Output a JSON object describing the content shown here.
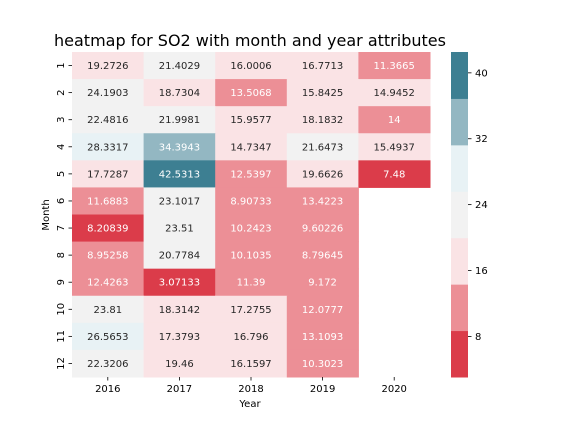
{
  "chart_data": {
    "type": "heatmap",
    "title": "heatmap for SO2 with month and year attributes",
    "xlabel": "Year",
    "ylabel": "Month",
    "x_categories": [
      "2016",
      "2017",
      "2018",
      "2019",
      "2020"
    ],
    "y_categories": [
      "1",
      "2",
      "3",
      "4",
      "5",
      "6",
      "7",
      "8",
      "9",
      "10",
      "11",
      "12"
    ],
    "values": [
      [
        19.2726,
        21.4029,
        16.0006,
        16.7713,
        11.3665
      ],
      [
        24.1903,
        18.7304,
        13.5068,
        15.8425,
        14.9452
      ],
      [
        22.4816,
        21.9981,
        15.9577,
        18.1832,
        14
      ],
      [
        28.3317,
        34.3943,
        14.7347,
        21.6473,
        15.4937
      ],
      [
        17.7287,
        42.5313,
        12.5397,
        19.6626,
        7.48
      ],
      [
        11.6883,
        23.1017,
        8.90733,
        13.4223,
        null
      ],
      [
        8.20839,
        23.51,
        10.2423,
        9.60226,
        null
      ],
      [
        8.95258,
        20.7784,
        10.1035,
        8.79645,
        null
      ],
      [
        12.4263,
        3.07133,
        11.39,
        9.172,
        null
      ],
      [
        23.81,
        18.3142,
        17.2755,
        12.0777,
        null
      ],
      [
        26.5653,
        17.3793,
        16.796,
        13.1093,
        null
      ],
      [
        22.3206,
        19.46,
        16.1597,
        10.3023,
        null
      ]
    ],
    "colorbar": {
      "range": [
        3.07133,
        42.5313
      ],
      "ticks": [
        8,
        16,
        24,
        32,
        40
      ],
      "bins": [
        {
          "color": "#db3c4a"
        },
        {
          "color": "#ec8f96"
        },
        {
          "color": "#fae3e5"
        },
        {
          "color": "#f2f2f2"
        },
        {
          "color": "#e8f2f5"
        },
        {
          "color": "#93b7c2"
        },
        {
          "color": "#3d7f92"
        }
      ]
    }
  }
}
